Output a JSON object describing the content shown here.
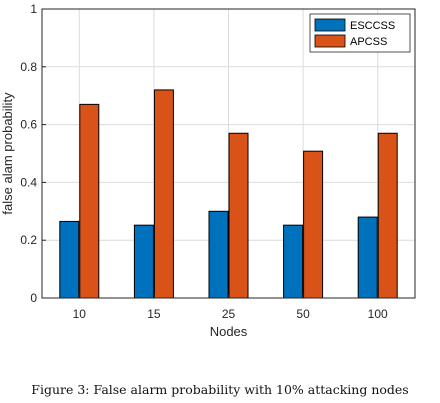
{
  "chart_data": {
    "type": "bar",
    "categories": [
      "10",
      "15",
      "25",
      "50",
      "100"
    ],
    "series": [
      {
        "name": "ESCCSS",
        "color": "#0072BD",
        "values": [
          0.265,
          0.252,
          0.3,
          0.252,
          0.28
        ]
      },
      {
        "name": "APCSS",
        "color": "#D95319",
        "values": [
          0.67,
          0.72,
          0.57,
          0.508,
          0.57
        ]
      }
    ],
    "xlabel": "Nodes",
    "ylabel": "false alam probability",
    "ylim": [
      0,
      1
    ],
    "yticks": [
      "0",
      "0.2",
      "0.4",
      "0.6",
      "0.8",
      "1"
    ],
    "grid": true,
    "legend_position": "top-right"
  },
  "caption": "Figure 3: False alarm probability with 10% attacking nodes"
}
